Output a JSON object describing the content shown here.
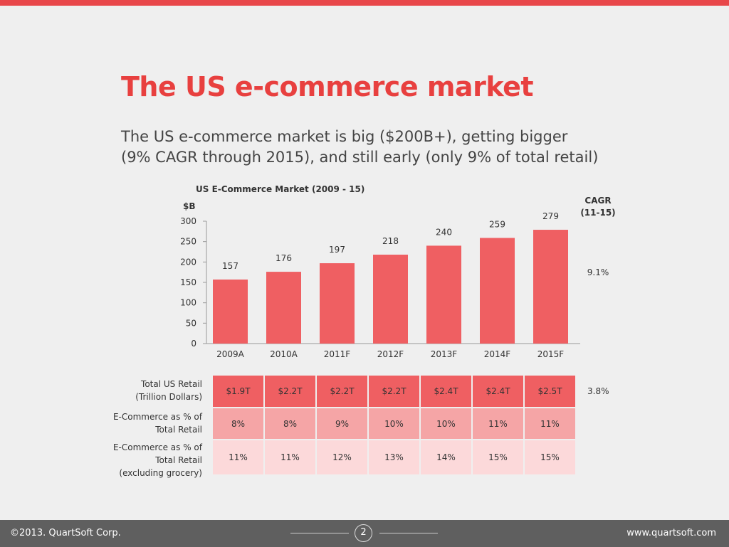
{
  "title": "The US e-commerce market",
  "subtitle_lines": [
    "The US e-commerce market is big ($200B+), getting bigger",
    "(9% CAGR through 2015), and still early (only 9% of total retail)"
  ],
  "colors": {
    "accent": "#e8403f",
    "bar": "#ef5f62",
    "row1": "#ef5f62",
    "row2": "#f5a5a6",
    "row3": "#fcd9da",
    "footer": "#5f5f5f"
  },
  "chart_data": {
    "type": "bar",
    "title": "US E-Commerce Market (2009 - 15)",
    "ylabel": "$B",
    "categories": [
      "2009A",
      "2010A",
      "2011F",
      "2012F",
      "2013F",
      "2014F",
      "2015F"
    ],
    "values": [
      157,
      176,
      197,
      218,
      240,
      259,
      279
    ],
    "ylim": [
      0,
      300
    ],
    "yticks": [
      0,
      50,
      100,
      150,
      200,
      250,
      300
    ],
    "grid": false,
    "cagr_header": [
      "CAGR",
      "(11-15)"
    ],
    "cagr_value": "9.1%"
  },
  "table": {
    "rows": [
      {
        "label": [
          "Total US Retail",
          "(Trillion Dollars)"
        ],
        "values": [
          "$1.9T",
          "$2.2T",
          "$2.2T",
          "$2.2T",
          "$2.4T",
          "$2.4T",
          "$2.5T"
        ],
        "cagr": "3.8%"
      },
      {
        "label": [
          "E-Commerce as % of",
          "Total Retail"
        ],
        "values": [
          "8%",
          "8%",
          "9%",
          "10%",
          "10%",
          "11%",
          "11%"
        ]
      },
      {
        "label": [
          "E-Commerce as % of",
          "Total Retail",
          "(excluding grocery)"
        ],
        "values": [
          "11%",
          "11%",
          "12%",
          "13%",
          "14%",
          "15%",
          "15%"
        ]
      }
    ]
  },
  "footer": {
    "copyright": "©2013. QuartSoft Corp.",
    "page": "2",
    "website": "www.quartsoft.com"
  }
}
